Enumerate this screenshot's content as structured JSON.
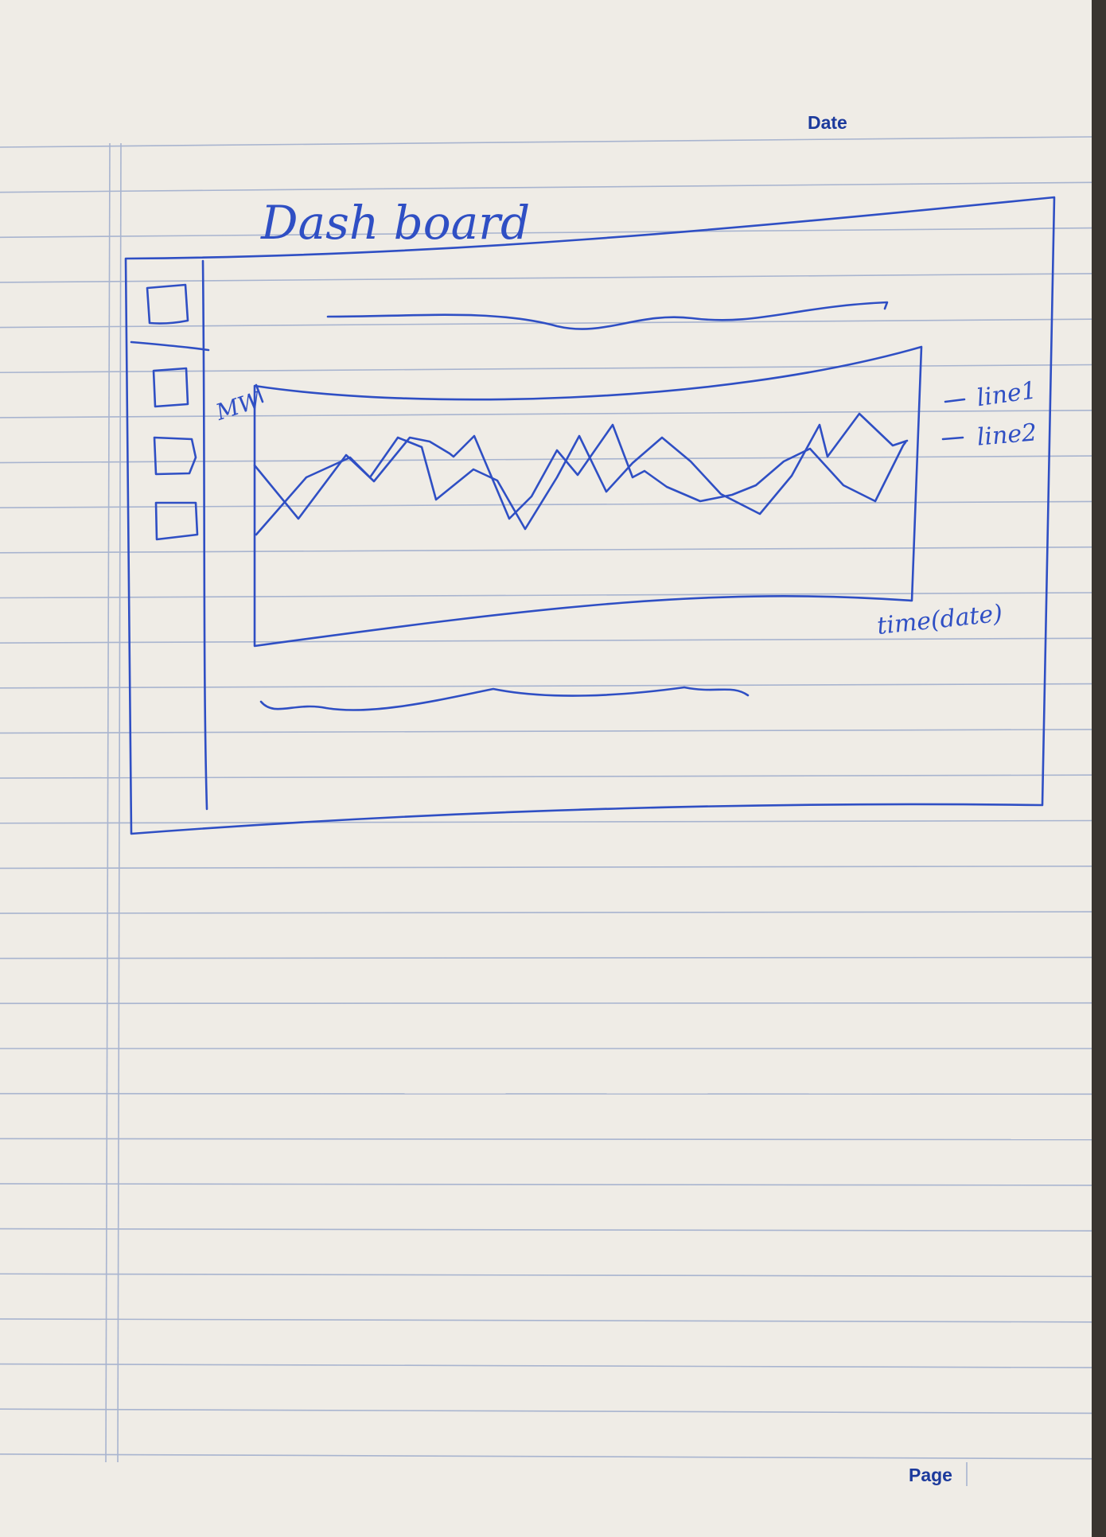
{
  "paper": {
    "date_label": "Date",
    "page_label": "Page",
    "ink_color": "#2f4fc4",
    "rule_color": "#9aa9c9",
    "paper_color": "#efece6"
  },
  "sketch": {
    "title": "Dash board",
    "sidebar_icons": [
      "icon-box-1",
      "icon-box-2",
      "icon-box-3",
      "icon-box-4"
    ],
    "chart": {
      "y_label": "MW",
      "x_label": "time(date)",
      "legend": [
        "line1",
        "line2"
      ]
    }
  }
}
